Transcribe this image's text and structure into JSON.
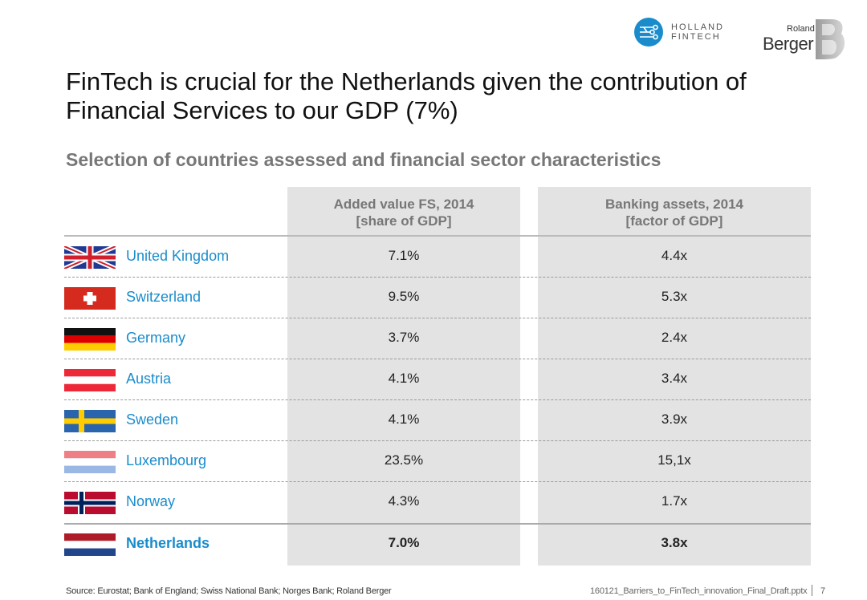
{
  "logos": {
    "holland_fintech_line1": "HOLLAND",
    "holland_fintech_line2": "FINTECH",
    "roland_berger_top": "Roland",
    "roland_berger_main": "Berger"
  },
  "title": "FinTech is crucial for the Netherlands given the contribution of Financial Services to our GDP (7%)",
  "subtitle": "Selection of countries assessed and financial sector characteristics",
  "table": {
    "headers": [
      {
        "line1": "Added value FS, 2014",
        "line2": "[share of GDP]"
      },
      {
        "line1": "Banking assets, 2014",
        "line2": "[factor of GDP]"
      }
    ],
    "rows": [
      {
        "flag": "uk-flag-icon",
        "country": "United Kingdom",
        "added_value": "7.1%",
        "banking_assets": "4.4x"
      },
      {
        "flag": "switzerland-flag-icon",
        "country": "Switzerland",
        "added_value": "9.5%",
        "banking_assets": "5.3x"
      },
      {
        "flag": "germany-flag-icon",
        "country": "Germany",
        "added_value": "3.7%",
        "banking_assets": "2.4x"
      },
      {
        "flag": "austria-flag-icon",
        "country": "Austria",
        "added_value": "4.1%",
        "banking_assets": "3.4x"
      },
      {
        "flag": "sweden-flag-icon",
        "country": "Sweden",
        "added_value": "4.1%",
        "banking_assets": "3.9x"
      },
      {
        "flag": "luxembourg-flag-icon",
        "country": "Luxembourg",
        "added_value": "23.5%",
        "banking_assets": "15,1x"
      },
      {
        "flag": "norway-flag-icon",
        "country": "Norway",
        "added_value": "4.3%",
        "banking_assets": "1.7x"
      },
      {
        "flag": "netherlands-flag-icon",
        "country": "Netherlands",
        "added_value": "7.0%",
        "banking_assets": "3.8x"
      }
    ]
  },
  "footer": {
    "source": "Source: Eurostat; Bank of England; Swiss National Bank; Norges Bank; Roland Berger",
    "file": "160121_Barriers_to_FinTech_innovation_Final_Draft.pptx",
    "page": "7"
  },
  "colors": {
    "accent": "#1a8ccc",
    "column_bg": "#e3e3e3",
    "header_text": "#777777"
  }
}
